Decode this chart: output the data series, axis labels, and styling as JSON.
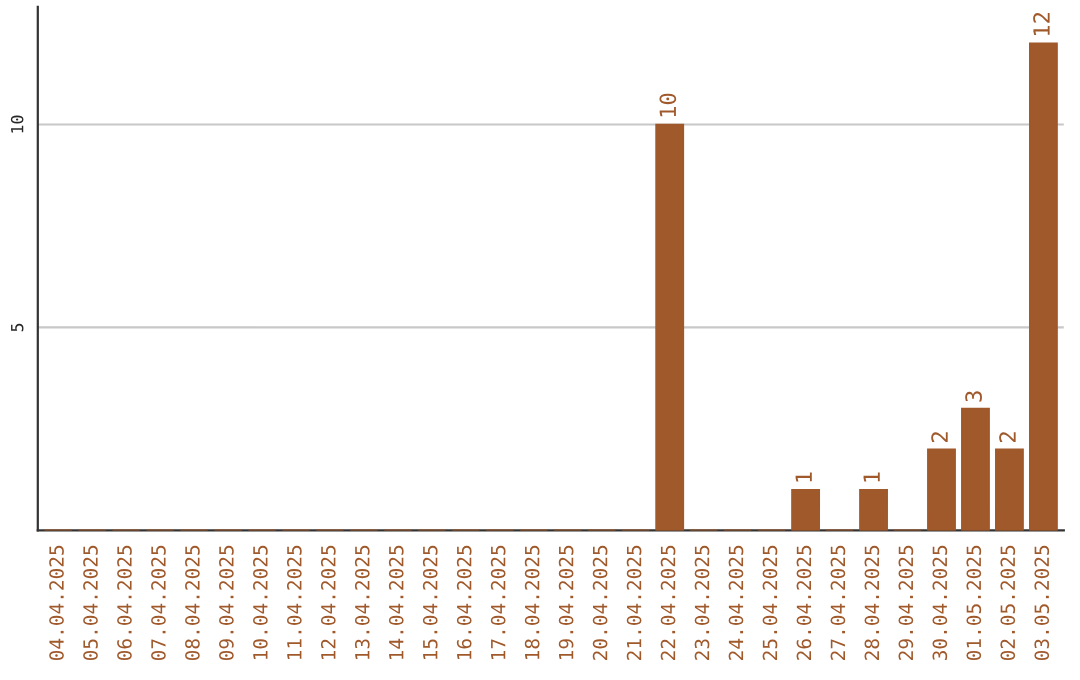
{
  "chart_data": {
    "type": "bar",
    "categories": [
      "04.04.2025",
      "05.04.2025",
      "06.04.2025",
      "07.04.2025",
      "08.04.2025",
      "09.04.2025",
      "10.04.2025",
      "11.04.2025",
      "12.04.2025",
      "13.04.2025",
      "14.04.2025",
      "15.04.2025",
      "16.04.2025",
      "17.04.2025",
      "18.04.2025",
      "19.04.2025",
      "20.04.2025",
      "21.04.2025",
      "22.04.2025",
      "23.04.2025",
      "24.04.2025",
      "25.04.2025",
      "26.04.2025",
      "27.04.2025",
      "28.04.2025",
      "29.04.2025",
      "30.04.2025",
      "01.05.2025",
      "02.05.2025",
      "03.05.2025"
    ],
    "values": [
      0,
      0,
      0,
      0,
      0,
      0,
      0,
      0,
      0,
      0,
      0,
      0,
      0,
      0,
      0,
      0,
      0,
      0,
      10,
      0,
      0,
      0,
      1,
      0,
      1,
      0,
      2,
      3,
      2,
      12
    ],
    "value_labels": [
      null,
      null,
      null,
      null,
      null,
      null,
      null,
      null,
      null,
      null,
      null,
      null,
      null,
      null,
      null,
      null,
      null,
      null,
      "10",
      null,
      null,
      null,
      "1",
      null,
      "1",
      null,
      "2",
      "3",
      "2",
      "12"
    ],
    "color": "#a0592b",
    "ylim": [
      0,
      12.9
    ],
    "yticks": [
      5,
      10
    ],
    "grid": "y"
  }
}
